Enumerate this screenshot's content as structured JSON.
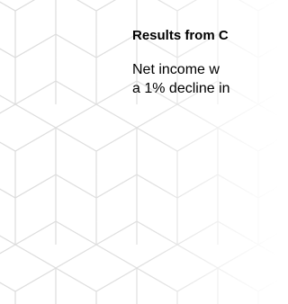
{
  "section": {
    "title": "Results from C",
    "lines": [
      "Net income w",
      "a 1% decline in"
    ]
  }
}
